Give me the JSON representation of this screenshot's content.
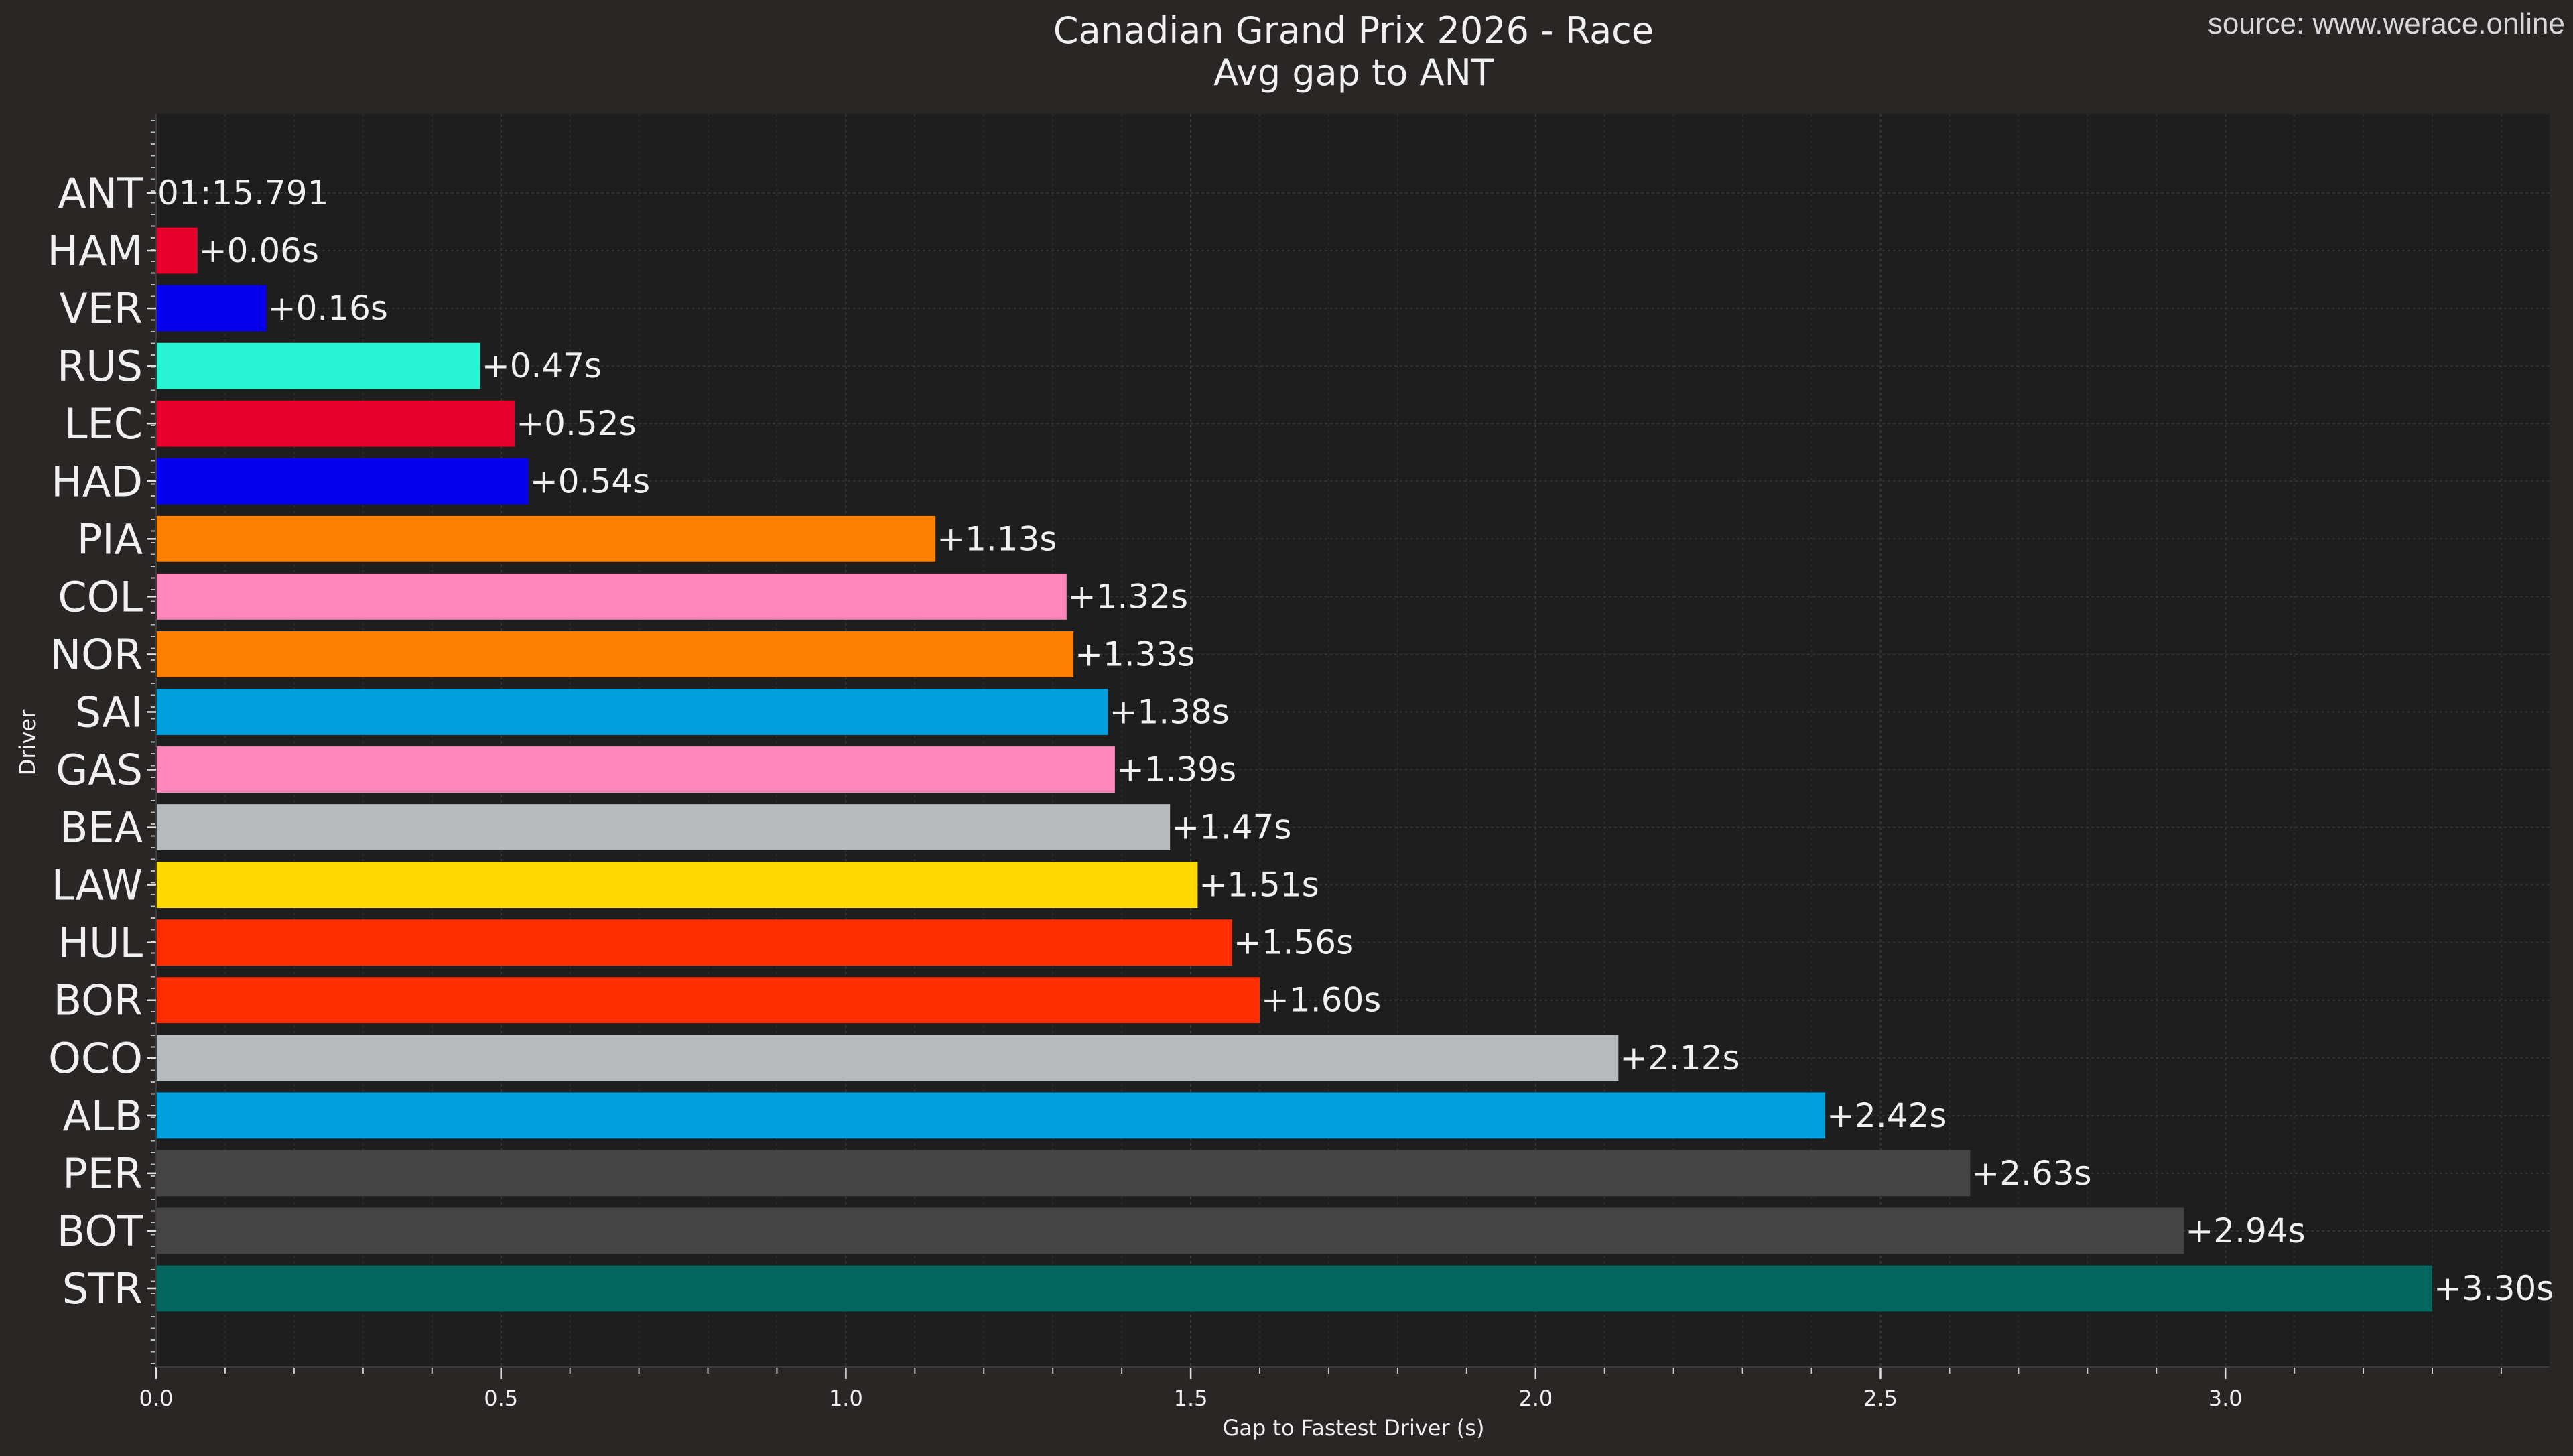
{
  "chart_data": {
    "type": "bar",
    "orientation": "horizontal",
    "title": "Canadian Grand Prix 2026 - Race",
    "subtitle": "Avg gap to ANT",
    "source": "source: www.werace.online",
    "xlabel": "Gap to Fastest Driver (s)",
    "ylabel": "Driver",
    "xlim": [
      0,
      3.47
    ],
    "xticks": [
      0.0,
      0.5,
      1.0,
      1.5,
      2.0,
      2.5,
      3.0
    ],
    "xtick_labels": [
      "0.0",
      "0.5",
      "1.0",
      "1.5",
      "2.0",
      "2.5",
      "3.0"
    ],
    "grid": true,
    "categories": [
      "ANT",
      "HAM",
      "VER",
      "RUS",
      "LEC",
      "HAD",
      "PIA",
      "COL",
      "NOR",
      "SAI",
      "GAS",
      "BEA",
      "LAW",
      "HUL",
      "BOR",
      "OCO",
      "ALB",
      "PER",
      "BOT",
      "STR"
    ],
    "values": [
      0,
      0.06,
      0.16,
      0.47,
      0.52,
      0.54,
      1.13,
      1.32,
      1.33,
      1.38,
      1.39,
      1.47,
      1.51,
      1.56,
      1.6,
      2.12,
      2.42,
      2.63,
      2.94,
      3.3
    ],
    "labels": [
      "01:15.791",
      "+0.06s",
      "+0.16s",
      "+0.47s",
      "+0.52s",
      "+0.54s",
      "+1.13s",
      "+1.32s",
      "+1.33s",
      "+1.38s",
      "+1.39s",
      "+1.47s",
      "+1.51s",
      "+1.56s",
      "+1.60s",
      "+2.12s",
      "+2.42s",
      "+2.63s",
      "+2.94s",
      "+3.30s"
    ],
    "colors": [
      "#00d2be",
      "#e8002d",
      "#0600ef",
      "#27f4d2",
      "#e8002d",
      "#0600ef",
      "#ff8000",
      "#ff87bc",
      "#ff8000",
      "#00a0de",
      "#ff87bc",
      "#b6babd",
      "#ffd800",
      "#ff2d00",
      "#ff2d00",
      "#b6babd",
      "#00a0de",
      "#444444",
      "#444444",
      "#03675f"
    ]
  },
  "colors": {
    "background": "#292625",
    "plot_background": "#1e1e1e",
    "grid": "#3a3a3a",
    "text": "#f0f0f0"
  }
}
